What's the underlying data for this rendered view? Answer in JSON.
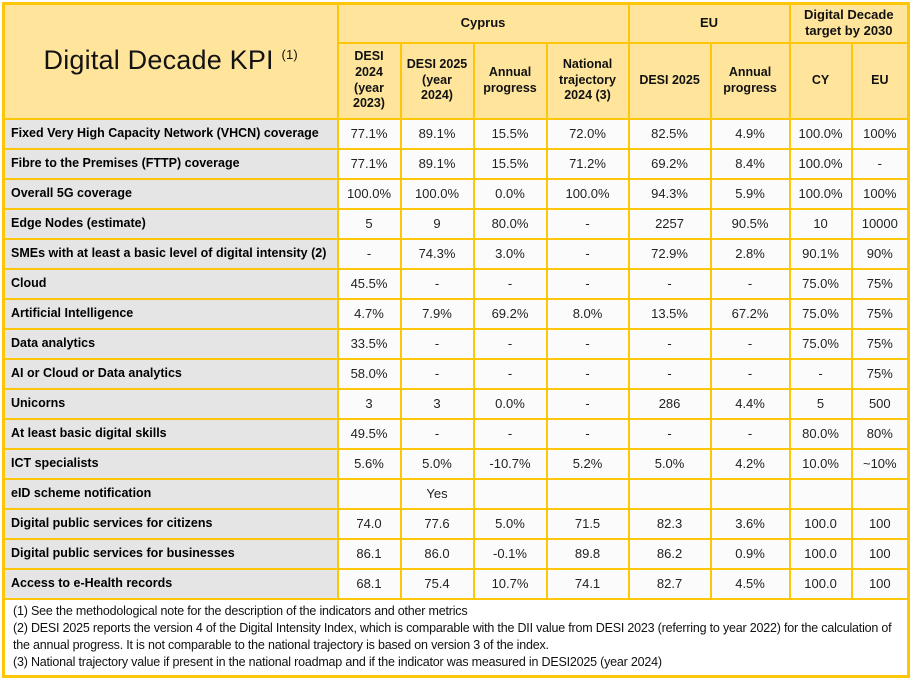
{
  "title": {
    "text": "Digital Decade KPI",
    "superscript": "(1)"
  },
  "header": {
    "groups": [
      {
        "label": "Cyprus",
        "span": 4
      },
      {
        "label": "EU",
        "span": 2
      },
      {
        "label": "Digital Decade target by 2030",
        "span": 2
      }
    ],
    "columns": [
      "DESI 2024 (year 2023)",
      "DESI 2025 (year 2024)",
      "Annual progress",
      "National trajectory 2024 (3)",
      "DESI 2025",
      "Annual progress",
      "CY",
      "EU"
    ]
  },
  "rows": [
    {
      "label": "Fixed Very High Capacity Network (VHCN) coverage",
      "values": [
        "77.1%",
        "89.1%",
        "15.5%",
        "72.0%",
        "82.5%",
        "4.9%",
        "100.0%",
        "100%"
      ]
    },
    {
      "label": "Fibre to the Premises (FTTP) coverage",
      "values": [
        "77.1%",
        "89.1%",
        "15.5%",
        "71.2%",
        "69.2%",
        "8.4%",
        "100.0%",
        "-"
      ]
    },
    {
      "label": "Overall 5G coverage",
      "values": [
        "100.0%",
        "100.0%",
        "0.0%",
        "100.0%",
        "94.3%",
        "5.9%",
        "100.0%",
        "100%"
      ]
    },
    {
      "label": "Edge Nodes (estimate)",
      "values": [
        "5",
        "9",
        "80.0%",
        "-",
        "2257",
        "90.5%",
        "10",
        "10000"
      ]
    },
    {
      "label": "SMEs with at least a basic level of digital intensity (2)",
      "values": [
        "-",
        "74.3%",
        "3.0%",
        "-",
        "72.9%",
        "2.8%",
        "90.1%",
        "90%"
      ]
    },
    {
      "label": "Cloud",
      "values": [
        "45.5%",
        "-",
        "-",
        "-",
        "-",
        "-",
        "75.0%",
        "75%"
      ]
    },
    {
      "label": "Artificial Intelligence",
      "values": [
        "4.7%",
        "7.9%",
        "69.2%",
        "8.0%",
        "13.5%",
        "67.2%",
        "75.0%",
        "75%"
      ]
    },
    {
      "label": "Data analytics",
      "values": [
        "33.5%",
        "-",
        "-",
        "-",
        "-",
        "-",
        "75.0%",
        "75%"
      ]
    },
    {
      "label": "AI or Cloud or Data analytics",
      "values": [
        "58.0%",
        "-",
        "-",
        "-",
        "-",
        "-",
        "-",
        "75%"
      ]
    },
    {
      "label": "Unicorns",
      "values": [
        "3",
        "3",
        "0.0%",
        "-",
        "286",
        "4.4%",
        "5",
        "500"
      ]
    },
    {
      "label": "At least basic digital skills",
      "values": [
        "49.5%",
        "-",
        "-",
        "-",
        "-",
        "-",
        "80.0%",
        "80%"
      ]
    },
    {
      "label": "ICT specialists",
      "values": [
        "5.6%",
        "5.0%",
        "-10.7%",
        "5.2%",
        "5.0%",
        "4.2%",
        "10.0%",
        "~10%"
      ]
    },
    {
      "label": "eID scheme notification",
      "values": [
        "",
        "Yes",
        "",
        "",
        "",
        "",
        "",
        ""
      ]
    },
    {
      "label": "Digital public services for citizens",
      "values": [
        "74.0",
        "77.6",
        "5.0%",
        "71.5",
        "82.3",
        "3.6%",
        "100.0",
        "100"
      ]
    },
    {
      "label": "Digital public services for businesses",
      "values": [
        "86.1",
        "86.0",
        "-0.1%",
        "89.8",
        "86.2",
        "0.9%",
        "100.0",
        "100"
      ]
    },
    {
      "label": "Access to e-Health records",
      "values": [
        "68.1",
        "75.4",
        "10.7%",
        "74.1",
        "82.7",
        "4.5%",
        "100.0",
        "100"
      ]
    }
  ],
  "footnotes": [
    "(1) See the methodological note for the description of the indicators and other metrics",
    "(2) DESI 2025 reports the version 4 of the Digital Intensity Index, which is comparable with the DII value from DESI 2023 (referring to year 2022) for the calculation of the annual progress. It is not comparable to the national trajectory is based on version 3 of the index.",
    "(3) National trajectory value if present in the national roadmap and if the indicator was measured in DESI2025 (year 2024)"
  ],
  "colors": {
    "border": "#FDC608",
    "header_fill": "#FFE59B",
    "label_fill": "#E6E5E5",
    "cell_fill": "#FBFBFB"
  }
}
